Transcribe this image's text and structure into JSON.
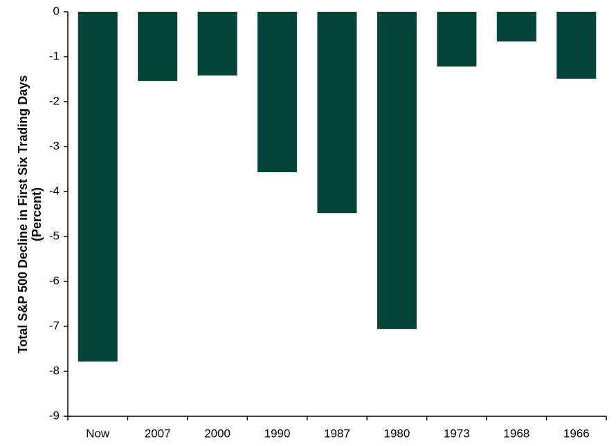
{
  "chart_data": {
    "type": "bar",
    "y_label": [
      "Total S&P 500 Decline in First Six Trading Days",
      "(Percent)"
    ],
    "categories": [
      "Now",
      "2007",
      "2000",
      "1990",
      "1987",
      "1980",
      "1973",
      "1968",
      "1966"
    ],
    "values": [
      -7.78,
      -1.54,
      -1.42,
      -3.57,
      -4.48,
      -7.06,
      -1.22,
      -0.66,
      -1.49
    ],
    "color": "#04443a",
    "ylim": [
      -9,
      0
    ],
    "yticks": [
      0,
      -1,
      -2,
      -3,
      -4,
      -5,
      -6,
      -7,
      -8,
      -9
    ],
    "grid": false
  }
}
